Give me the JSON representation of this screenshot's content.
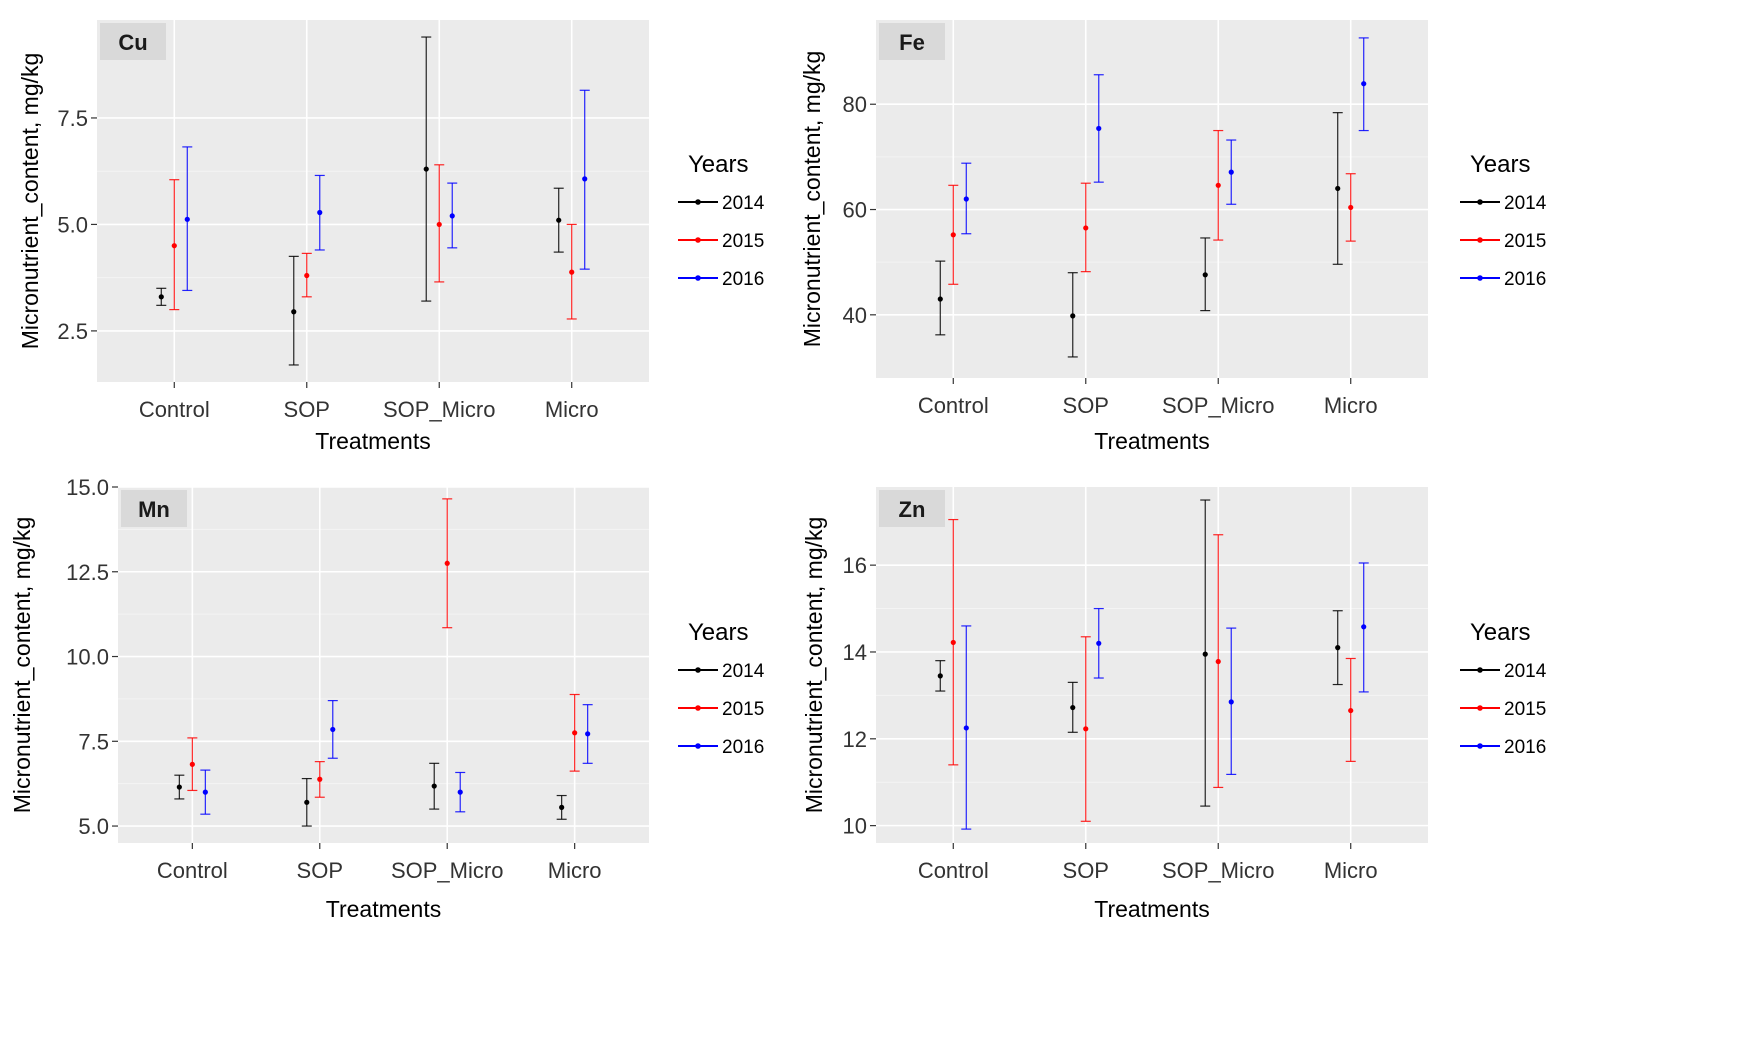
{
  "legend": {
    "title": "Years",
    "items": [
      {
        "label": "2014",
        "color": "#000000"
      },
      {
        "label": "2015",
        "color": "#ff0000"
      },
      {
        "label": "2016",
        "color": "#0000ff"
      }
    ]
  },
  "chart_data": [
    {
      "type": "errorbar",
      "panel": "Cu",
      "xlabel": "Treatments",
      "ylabel": "Micronutrient_content, mg/kg",
      "categories": [
        "Control",
        "SOP",
        "SOP_Micro",
        "Micro"
      ],
      "ylim": [
        1.3,
        9.8
      ],
      "yticks": [
        2.5,
        5.0,
        7.5
      ],
      "ytick_labels": [
        "2.5",
        "5.0",
        "7.5"
      ],
      "series": [
        {
          "name": "2014",
          "mean": [
            3.3,
            2.95,
            6.3,
            5.1
          ],
          "lower": [
            3.1,
            1.7,
            3.2,
            4.35
          ],
          "upper": [
            3.5,
            4.25,
            9.4,
            5.85
          ]
        },
        {
          "name": "2015",
          "mean": [
            4.5,
            3.8,
            5.0,
            3.88
          ],
          "lower": [
            3.0,
            3.3,
            3.65,
            2.78
          ],
          "upper": [
            6.05,
            4.32,
            6.4,
            5.0
          ]
        },
        {
          "name": "2016",
          "mean": [
            5.12,
            5.28,
            5.2,
            6.07
          ],
          "lower": [
            3.45,
            4.4,
            4.45,
            3.95
          ],
          "upper": [
            6.82,
            6.15,
            5.97,
            8.15
          ]
        }
      ]
    },
    {
      "type": "errorbar",
      "panel": "Fe",
      "xlabel": "Treatments",
      "ylabel": "Micronutrient_content, mg/kg",
      "categories": [
        "Control",
        "SOP",
        "SOP_Micro",
        "Micro"
      ],
      "ylim": [
        28,
        96
      ],
      "yticks": [
        40,
        60,
        80
      ],
      "ytick_labels": [
        "40",
        "60",
        "80"
      ],
      "series": [
        {
          "name": "2014",
          "mean": [
            43.0,
            39.8,
            47.6,
            64.0
          ],
          "lower": [
            36.2,
            32.0,
            40.8,
            49.6
          ],
          "upper": [
            50.2,
            48.0,
            54.6,
            78.4
          ]
        },
        {
          "name": "2015",
          "mean": [
            55.2,
            56.5,
            64.6,
            60.4
          ],
          "lower": [
            45.8,
            48.2,
            54.2,
            54.0
          ],
          "upper": [
            64.6,
            65.0,
            75.0,
            66.8
          ]
        },
        {
          "name": "2016",
          "mean": [
            62.0,
            75.4,
            67.1,
            83.9
          ],
          "lower": [
            55.4,
            65.2,
            61.0,
            75.0
          ],
          "upper": [
            68.8,
            85.6,
            73.2,
            92.6
          ]
        }
      ]
    },
    {
      "type": "errorbar",
      "panel": "Mn",
      "xlabel": "Treatments",
      "ylabel": "Micronutrient_content, mg/kg",
      "categories": [
        "Control",
        "SOP",
        "SOP_Micro",
        "Micro"
      ],
      "ylim": [
        4.5,
        15.0
      ],
      "yticks": [
        5.0,
        7.5,
        10.0,
        12.5,
        15.0
      ],
      "ytick_labels": [
        "5.0",
        "7.5",
        "10.0",
        "12.5",
        "15.0"
      ],
      "series": [
        {
          "name": "2014",
          "mean": [
            6.15,
            5.7,
            6.18,
            5.55
          ],
          "lower": [
            5.8,
            5.0,
            5.5,
            5.2
          ],
          "upper": [
            6.5,
            6.4,
            6.85,
            5.9
          ]
        },
        {
          "name": "2015",
          "mean": [
            6.82,
            6.38,
            12.75,
            7.75
          ],
          "lower": [
            6.05,
            5.85,
            10.85,
            6.62
          ],
          "upper": [
            7.6,
            6.9,
            14.65,
            8.88
          ]
        },
        {
          "name": "2016",
          "mean": [
            6.0,
            7.85,
            6.0,
            7.72
          ],
          "lower": [
            5.35,
            7.0,
            5.42,
            6.85
          ],
          "upper": [
            6.65,
            8.7,
            6.58,
            8.58
          ]
        }
      ]
    },
    {
      "type": "errorbar",
      "panel": "Zn",
      "xlabel": "Treatments",
      "ylabel": "Micronutrient_content, mg/kg",
      "categories": [
        "Control",
        "SOP",
        "SOP_Micro",
        "Micro"
      ],
      "ylim": [
        9.6,
        17.8
      ],
      "yticks": [
        10,
        12,
        14,
        16
      ],
      "ytick_labels": [
        "10",
        "12",
        "14",
        "16"
      ],
      "series": [
        {
          "name": "2014",
          "mean": [
            13.45,
            12.72,
            13.95,
            14.1
          ],
          "lower": [
            13.1,
            12.15,
            10.45,
            13.25
          ],
          "upper": [
            13.8,
            13.3,
            17.5,
            14.95
          ]
        },
        {
          "name": "2015",
          "mean": [
            14.22,
            12.23,
            13.78,
            12.65
          ],
          "lower": [
            11.4,
            10.1,
            10.88,
            11.48
          ],
          "upper": [
            17.05,
            14.35,
            16.7,
            13.85
          ]
        },
        {
          "name": "2016",
          "mean": [
            12.25,
            14.2,
            12.85,
            14.58
          ],
          "lower": [
            9.92,
            13.4,
            11.18,
            13.08
          ],
          "upper": [
            14.6,
            15.0,
            14.55,
            16.05
          ]
        }
      ]
    }
  ]
}
